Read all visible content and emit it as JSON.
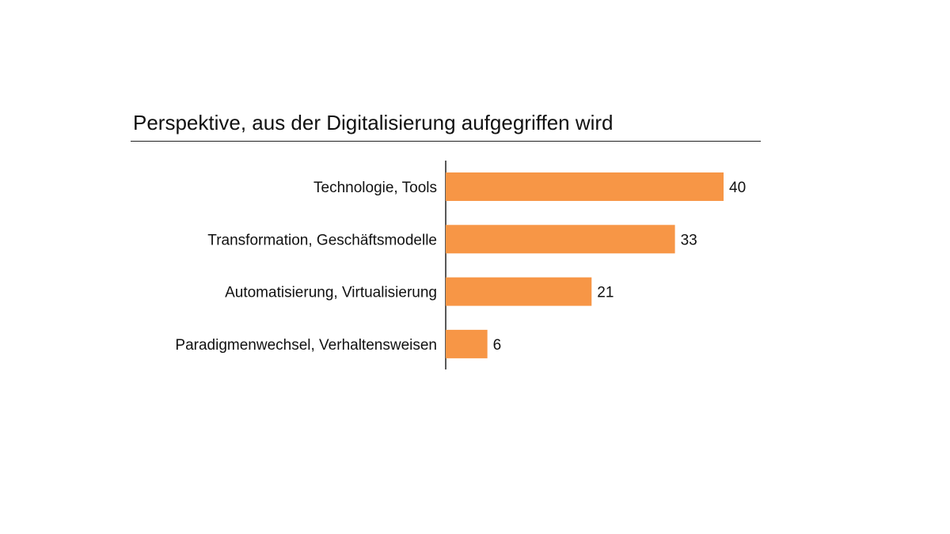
{
  "chart_data": {
    "type": "bar",
    "orientation": "horizontal",
    "title": "Perspektive, aus der Digitalisierung aufgegriffen wird",
    "categories": [
      "Technologie, Tools",
      "Transformation, Geschäftsmodelle",
      "Automatisierung, Virtualisierung",
      "Paradigmenwechsel, Verhaltensweisen"
    ],
    "values": [
      40,
      33,
      21,
      6
    ],
    "xlim": [
      0,
      40
    ],
    "grid": false,
    "legend": "none",
    "bar_color": "#F79646",
    "axis_color": "#222222",
    "data_labels": true
  }
}
